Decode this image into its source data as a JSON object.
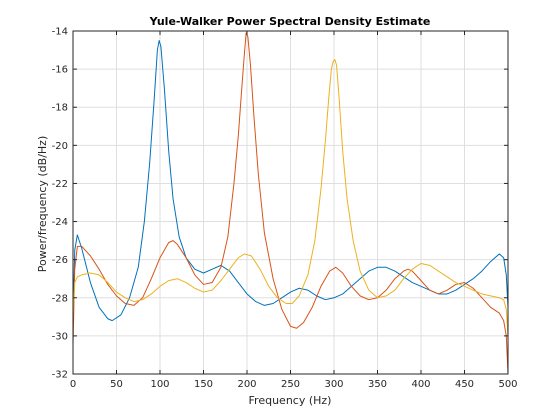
{
  "chart_data": {
    "type": "line",
    "title": "Yule-Walker Power Spectral Density Estimate",
    "xlabel": "Frequency (Hz)",
    "ylabel": "Power/frequency (dB/Hz)",
    "xlim": [
      0,
      500
    ],
    "ylim": [
      -32,
      -14
    ],
    "xticks": [
      0,
      50,
      100,
      150,
      200,
      250,
      300,
      350,
      400,
      450,
      500
    ],
    "yticks": [
      -32,
      -30,
      -28,
      -26,
      -24,
      -22,
      -20,
      -18,
      -16,
      -14
    ],
    "grid": true,
    "legend": null,
    "series": [
      {
        "color": "#0072BD",
        "points": [
          [
            0,
            -29.3
          ],
          [
            2,
            -25.5
          ],
          [
            5,
            -24.7
          ],
          [
            10,
            -25.4
          ],
          [
            20,
            -27.2
          ],
          [
            30,
            -28.5
          ],
          [
            40,
            -29.1
          ],
          [
            45,
            -29.2
          ],
          [
            55,
            -28.9
          ],
          [
            65,
            -28.0
          ],
          [
            75,
            -26.4
          ],
          [
            82,
            -24.0
          ],
          [
            88,
            -21.0
          ],
          [
            93,
            -17.8
          ],
          [
            97,
            -15.0
          ],
          [
            99,
            -14.5
          ],
          [
            101,
            -14.8
          ],
          [
            105,
            -17.0
          ],
          [
            110,
            -20.3
          ],
          [
            115,
            -22.8
          ],
          [
            122,
            -24.8
          ],
          [
            130,
            -25.9
          ],
          [
            140,
            -26.5
          ],
          [
            150,
            -26.7
          ],
          [
            160,
            -26.5
          ],
          [
            170,
            -26.3
          ],
          [
            180,
            -26.6
          ],
          [
            190,
            -27.2
          ],
          [
            200,
            -27.8
          ],
          [
            210,
            -28.2
          ],
          [
            220,
            -28.4
          ],
          [
            230,
            -28.3
          ],
          [
            240,
            -28.0
          ],
          [
            250,
            -27.7
          ],
          [
            260,
            -27.5
          ],
          [
            270,
            -27.6
          ],
          [
            280,
            -27.9
          ],
          [
            290,
            -28.1
          ],
          [
            300,
            -28.0
          ],
          [
            310,
            -27.8
          ],
          [
            320,
            -27.4
          ],
          [
            330,
            -27.0
          ],
          [
            340,
            -26.6
          ],
          [
            350,
            -26.4
          ],
          [
            360,
            -26.4
          ],
          [
            370,
            -26.6
          ],
          [
            380,
            -26.9
          ],
          [
            390,
            -27.2
          ],
          [
            400,
            -27.4
          ],
          [
            410,
            -27.6
          ],
          [
            420,
            -27.8
          ],
          [
            430,
            -27.8
          ],
          [
            440,
            -27.6
          ],
          [
            450,
            -27.3
          ],
          [
            460,
            -27.0
          ],
          [
            470,
            -26.6
          ],
          [
            480,
            -26.1
          ],
          [
            490,
            -25.7
          ],
          [
            495,
            -25.9
          ],
          [
            498,
            -26.8
          ],
          [
            500,
            -28.5
          ]
        ]
      },
      {
        "color": "#D95319",
        "points": [
          [
            0,
            -30.5
          ],
          [
            2,
            -26.5
          ],
          [
            5,
            -25.3
          ],
          [
            10,
            -25.3
          ],
          [
            20,
            -25.8
          ],
          [
            30,
            -26.5
          ],
          [
            40,
            -27.3
          ],
          [
            50,
            -27.9
          ],
          [
            60,
            -28.3
          ],
          [
            70,
            -28.4
          ],
          [
            80,
            -28.0
          ],
          [
            90,
            -27.0
          ],
          [
            100,
            -25.9
          ],
          [
            110,
            -25.1
          ],
          [
            115,
            -25.0
          ],
          [
            120,
            -25.2
          ],
          [
            130,
            -25.9
          ],
          [
            140,
            -26.8
          ],
          [
            150,
            -27.3
          ],
          [
            160,
            -27.2
          ],
          [
            170,
            -26.4
          ],
          [
            178,
            -24.8
          ],
          [
            185,
            -22.0
          ],
          [
            190,
            -19.5
          ],
          [
            194,
            -17.0
          ],
          [
            197,
            -15.2
          ],
          [
            199,
            -14.1
          ],
          [
            201,
            -14.3
          ],
          [
            204,
            -15.8
          ],
          [
            208,
            -18.5
          ],
          [
            213,
            -21.5
          ],
          [
            220,
            -24.6
          ],
          [
            230,
            -27.0
          ],
          [
            240,
            -28.6
          ],
          [
            250,
            -29.5
          ],
          [
            257,
            -29.6
          ],
          [
            265,
            -29.3
          ],
          [
            275,
            -28.5
          ],
          [
            285,
            -27.4
          ],
          [
            295,
            -26.6
          ],
          [
            302,
            -26.4
          ],
          [
            310,
            -26.7
          ],
          [
            320,
            -27.4
          ],
          [
            330,
            -27.9
          ],
          [
            340,
            -28.1
          ],
          [
            350,
            -28.0
          ],
          [
            360,
            -27.6
          ],
          [
            370,
            -27.0
          ],
          [
            380,
            -26.6
          ],
          [
            385,
            -26.5
          ],
          [
            390,
            -26.6
          ],
          [
            400,
            -27.1
          ],
          [
            410,
            -27.6
          ],
          [
            420,
            -27.8
          ],
          [
            430,
            -27.6
          ],
          [
            440,
            -27.3
          ],
          [
            450,
            -27.2
          ],
          [
            460,
            -27.5
          ],
          [
            470,
            -28.0
          ],
          [
            480,
            -28.5
          ],
          [
            490,
            -28.8
          ],
          [
            495,
            -29.2
          ],
          [
            498,
            -30.0
          ],
          [
            500,
            -32.0
          ]
        ]
      },
      {
        "color": "#EDB120",
        "points": [
          [
            0,
            -29.0
          ],
          [
            2,
            -27.2
          ],
          [
            5,
            -26.9
          ],
          [
            10,
            -26.8
          ],
          [
            20,
            -26.7
          ],
          [
            30,
            -26.8
          ],
          [
            40,
            -27.2
          ],
          [
            50,
            -27.7
          ],
          [
            60,
            -28.0
          ],
          [
            70,
            -28.2
          ],
          [
            80,
            -28.1
          ],
          [
            90,
            -27.8
          ],
          [
            100,
            -27.4
          ],
          [
            110,
            -27.1
          ],
          [
            120,
            -27.0
          ],
          [
            130,
            -27.2
          ],
          [
            140,
            -27.5
          ],
          [
            150,
            -27.7
          ],
          [
            160,
            -27.6
          ],
          [
            170,
            -27.1
          ],
          [
            180,
            -26.5
          ],
          [
            190,
            -25.9
          ],
          [
            197,
            -25.7
          ],
          [
            205,
            -25.8
          ],
          [
            215,
            -26.5
          ],
          [
            225,
            -27.4
          ],
          [
            235,
            -28.0
          ],
          [
            245,
            -28.3
          ],
          [
            252,
            -28.3
          ],
          [
            260,
            -27.9
          ],
          [
            270,
            -26.8
          ],
          [
            278,
            -25.0
          ],
          [
            285,
            -22.3
          ],
          [
            290,
            -19.8
          ],
          [
            294,
            -17.5
          ],
          [
            297,
            -16.0
          ],
          [
            299,
            -15.6
          ],
          [
            301,
            -15.5
          ],
          [
            303,
            -15.8
          ],
          [
            306,
            -17.6
          ],
          [
            310,
            -20.3
          ],
          [
            315,
            -22.8
          ],
          [
            322,
            -25.0
          ],
          [
            330,
            -26.6
          ],
          [
            340,
            -27.6
          ],
          [
            350,
            -28.0
          ],
          [
            360,
            -27.9
          ],
          [
            370,
            -27.6
          ],
          [
            380,
            -27.0
          ],
          [
            390,
            -26.5
          ],
          [
            400,
            -26.2
          ],
          [
            410,
            -26.3
          ],
          [
            420,
            -26.6
          ],
          [
            430,
            -26.9
          ],
          [
            440,
            -27.2
          ],
          [
            450,
            -27.4
          ],
          [
            460,
            -27.6
          ],
          [
            470,
            -27.8
          ],
          [
            480,
            -27.9
          ],
          [
            490,
            -28.0
          ],
          [
            495,
            -28.1
          ],
          [
            498,
            -28.6
          ],
          [
            500,
            -30.0
          ]
        ]
      }
    ]
  }
}
